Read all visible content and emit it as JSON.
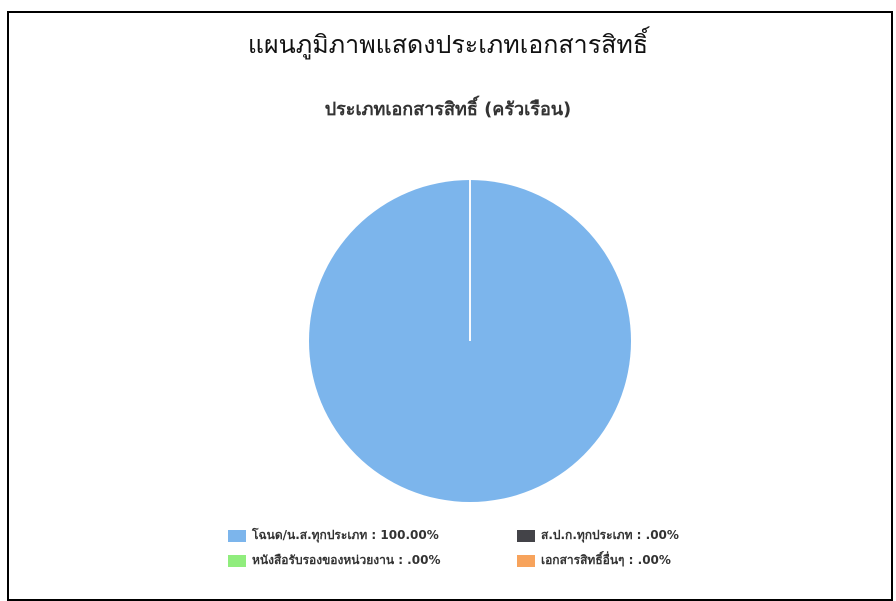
{
  "page": {
    "title": "แผนภูมิภาพแสดงประเภทเอกสารสิทธิ์"
  },
  "chart_data": {
    "type": "pie",
    "title": "ประเภทเอกสารสิทธิ์ (ครัวเรือน)",
    "categories": [
      "โฉนด/น.ส.ทุกประเภท",
      "ส.ป.ก.ทุกประเภท",
      "หนังสือรับรองของหน่วยงาน",
      "เอกสารสิทธิ์อื่นๆ"
    ],
    "values": [
      100.0,
      0.0,
      0.0,
      0.0
    ],
    "colors": [
      "#7cb5ec",
      "#434348",
      "#90ed7d",
      "#f7a35c"
    ],
    "legend": {
      "placement": "bottom",
      "labels": [
        "โฉนด/น.ส.ทุกประเภท : 100.00%",
        "ส.ป.ก.ทุกประเภท : .00%",
        "หนังสือรับรองของหน่วยงาน : .00%",
        "เอกสารสิทธิ์อื่นๆ : .00%"
      ]
    }
  }
}
